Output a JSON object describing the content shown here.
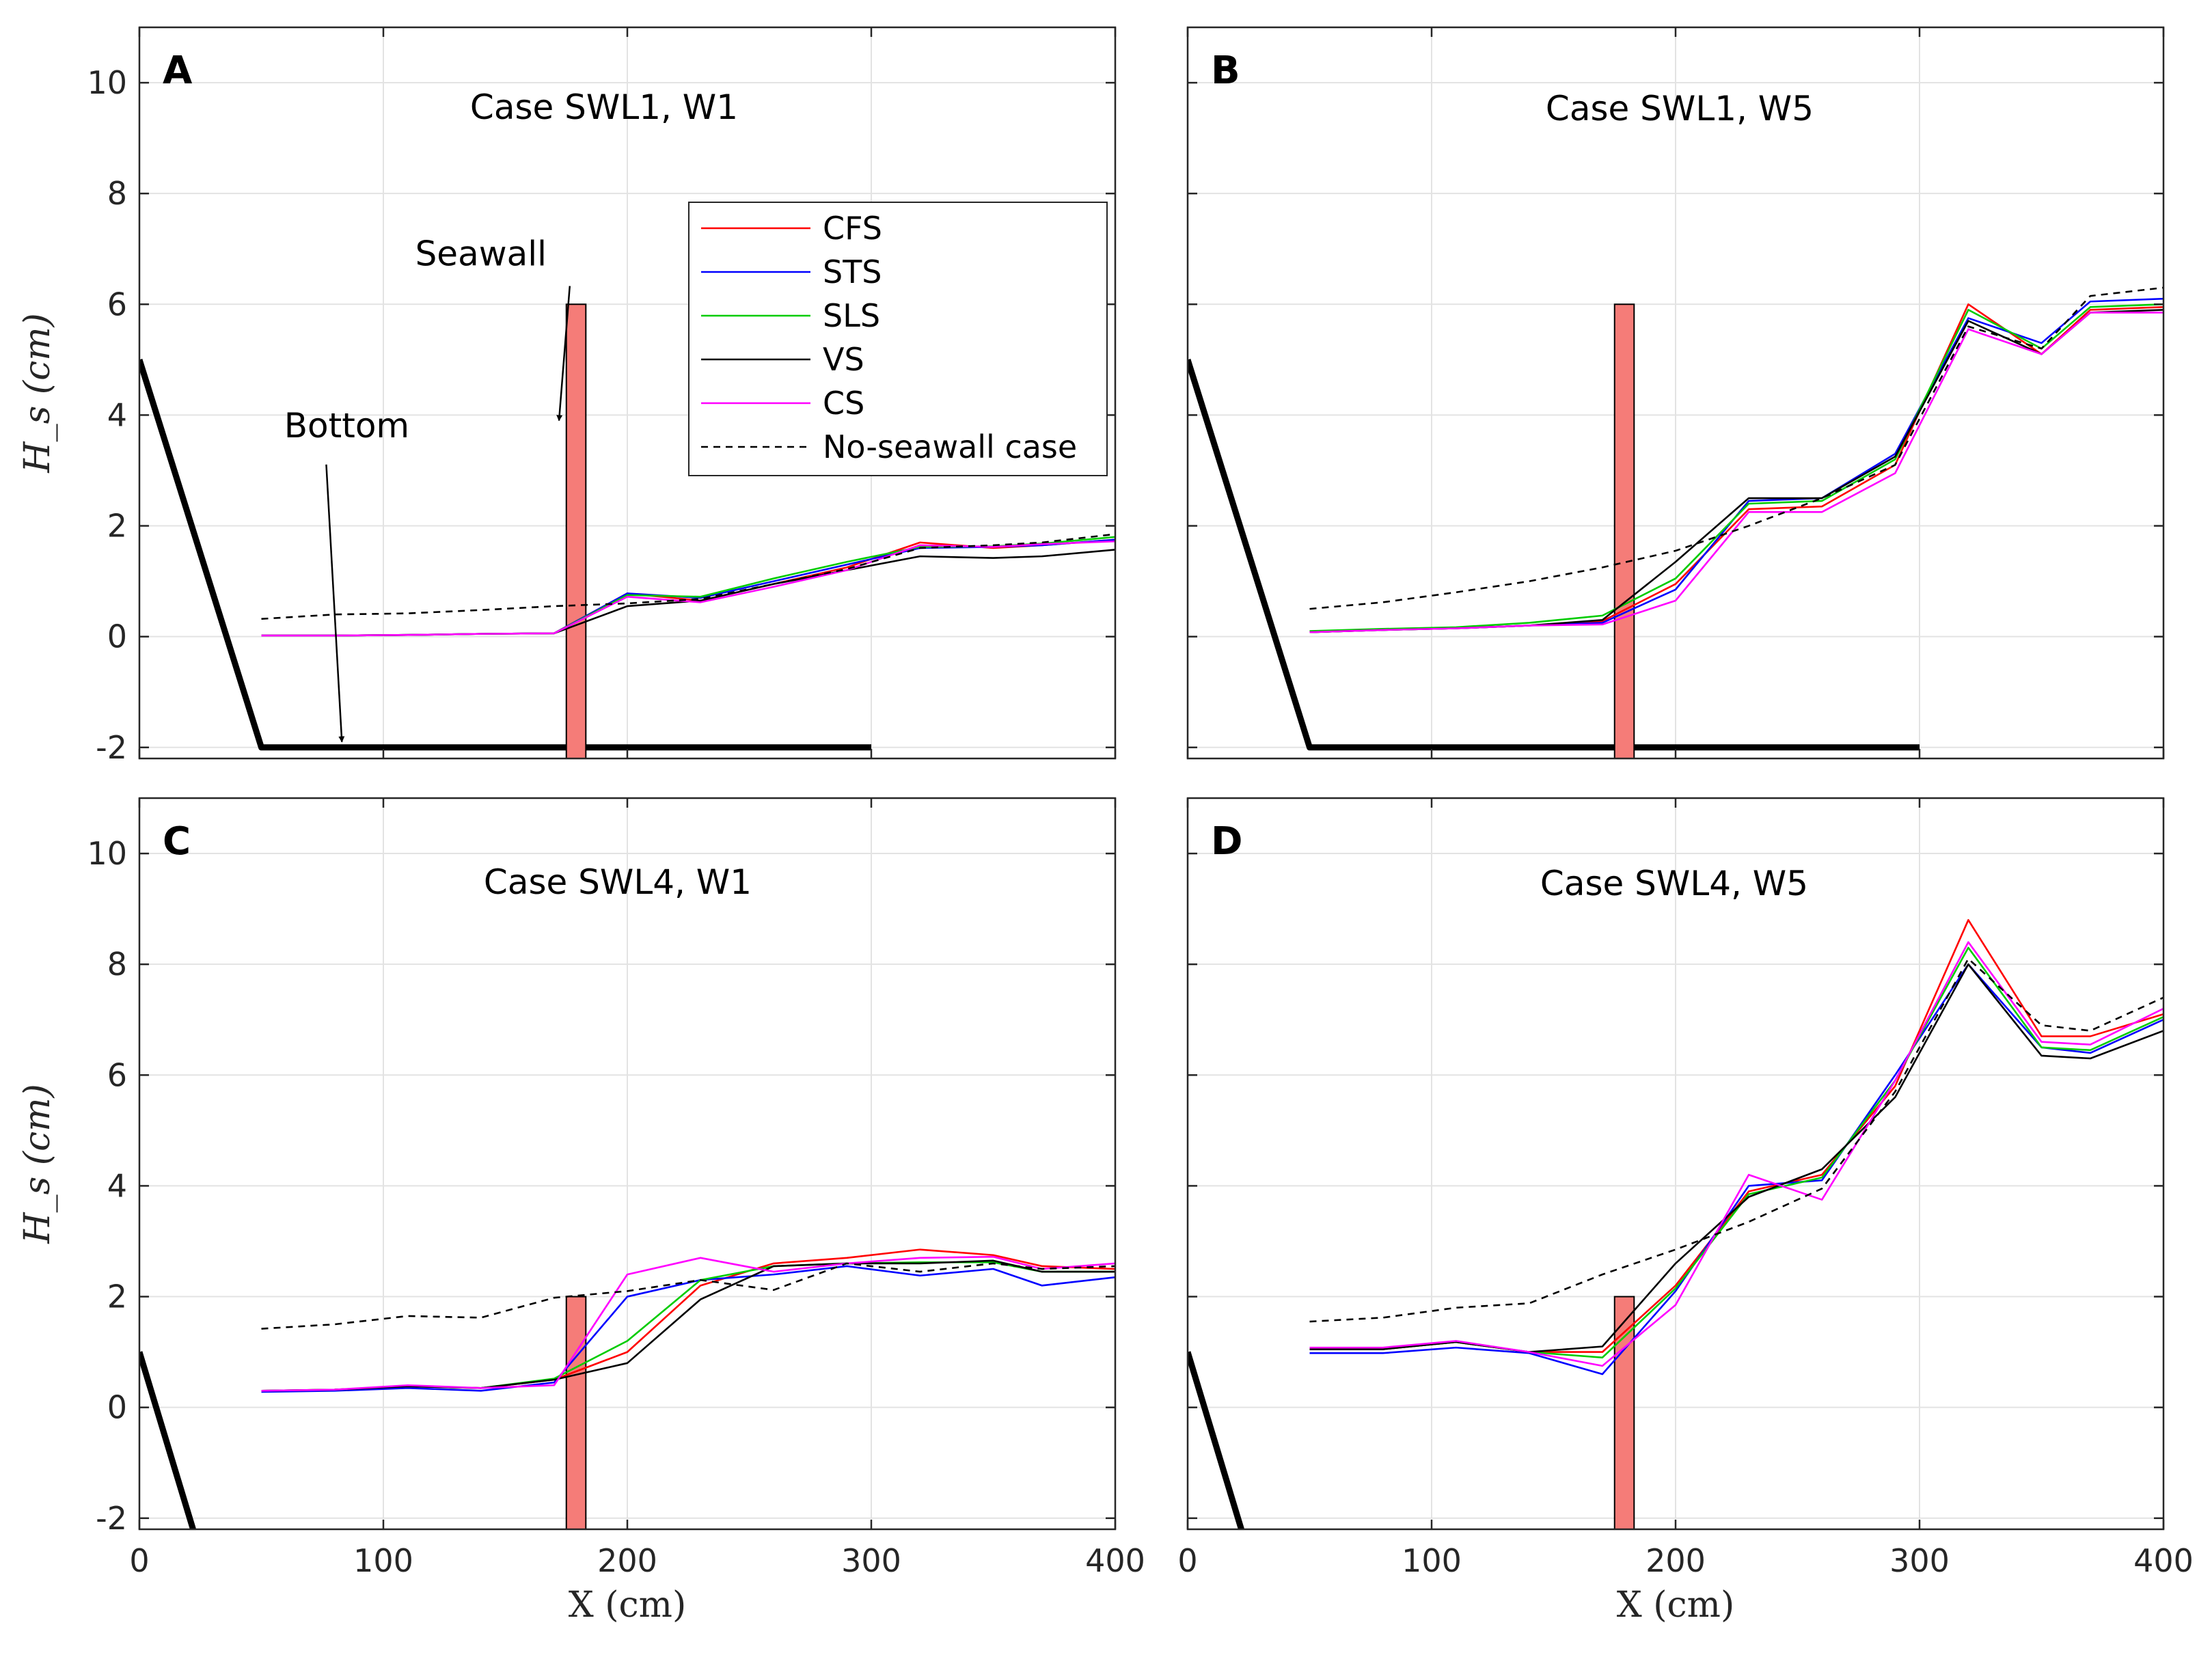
{
  "figure": {
    "xlabel": "X (cm)",
    "ylabel": "H_s (cm)"
  },
  "legend": {
    "entries": [
      {
        "name": "CFS",
        "color": "#ff0000",
        "dash": ""
      },
      {
        "name": "STS",
        "color": "#0000ff",
        "dash": ""
      },
      {
        "name": "SLS",
        "color": "#00cc00",
        "dash": ""
      },
      {
        "name": "VS",
        "color": "#000000",
        "dash": ""
      },
      {
        "name": "CS",
        "color": "#ff00ff",
        "dash": ""
      },
      {
        "name": "No-seawall case",
        "color": "#000000",
        "dash": "dashed"
      }
    ]
  },
  "colors": {
    "seawall_fill": "#f57c78",
    "grid": "#e3e3e3"
  },
  "chart_data": [
    {
      "type": "line",
      "panel": "A",
      "title": "Case SWL1, W1",
      "xlabel": "",
      "ylabel": "H_s (cm)",
      "xlim": [
        0,
        400
      ],
      "ylim": [
        -2.2,
        11
      ],
      "xticks": [
        "0",
        "100",
        "200",
        "300",
        "400"
      ],
      "yticks": [
        "-2",
        "0",
        "2",
        "4",
        "6",
        "8",
        "10"
      ],
      "annotations": [
        {
          "text": "Seawall",
          "anchor_data": [
            140,
            6.7
          ],
          "target_data": [
            172,
            3.9
          ]
        },
        {
          "text": "Bottom",
          "anchor_data": [
            85,
            3.6
          ],
          "target_data": [
            83,
            -1.9
          ]
        }
      ],
      "seawall": {
        "x0": 175,
        "x1": 183,
        "top": 6
      },
      "bottom": [
        [
          0,
          5
        ],
        [
          50,
          -2
        ],
        [
          300,
          -2
        ]
      ],
      "series": [
        {
          "name": "CFS",
          "x": [
            50,
            80,
            110,
            140,
            170,
            200,
            230,
            260,
            290,
            320,
            350,
            370,
            400
          ],
          "y": [
            0.02,
            0.02,
            0.03,
            0.05,
            0.06,
            0.78,
            0.65,
            0.95,
            1.25,
            1.7,
            1.6,
            1.65,
            1.75
          ]
        },
        {
          "name": "STS",
          "x": [
            50,
            80,
            110,
            140,
            170,
            200,
            230,
            260,
            290,
            320,
            350,
            370,
            400
          ],
          "y": [
            0.02,
            0.02,
            0.03,
            0.05,
            0.06,
            0.78,
            0.7,
            1.0,
            1.3,
            1.6,
            1.62,
            1.65,
            1.75
          ]
        },
        {
          "name": "SLS",
          "x": [
            50,
            80,
            110,
            140,
            170,
            200,
            230,
            260,
            290,
            320,
            350,
            370,
            400
          ],
          "y": [
            0.02,
            0.02,
            0.03,
            0.05,
            0.06,
            0.75,
            0.72,
            1.05,
            1.35,
            1.62,
            1.63,
            1.68,
            1.8
          ]
        },
        {
          "name": "VS",
          "x": [
            50,
            80,
            110,
            140,
            170,
            200,
            230,
            260,
            290,
            320,
            350,
            370,
            400
          ],
          "y": [
            0.02,
            0.02,
            0.03,
            0.05,
            0.06,
            0.55,
            0.65,
            0.95,
            1.2,
            1.45,
            1.42,
            1.45,
            1.57
          ]
        },
        {
          "name": "CS",
          "x": [
            50,
            80,
            110,
            140,
            170,
            200,
            230,
            260,
            290,
            320,
            350,
            370,
            400
          ],
          "y": [
            0.02,
            0.02,
            0.03,
            0.05,
            0.06,
            0.72,
            0.62,
            0.9,
            1.2,
            1.65,
            1.62,
            1.67,
            1.72
          ]
        },
        {
          "name": "No-seawall case",
          "x": [
            50,
            80,
            110,
            140,
            170,
            200,
            230,
            260,
            290,
            320,
            350,
            370,
            400
          ],
          "y": [
            0.32,
            0.4,
            0.42,
            0.48,
            0.55,
            0.6,
            0.68,
            0.95,
            1.22,
            1.6,
            1.65,
            1.7,
            1.85
          ]
        }
      ]
    },
    {
      "type": "line",
      "panel": "B",
      "title": "Case SWL1, W5",
      "xlabel": "",
      "ylabel": "",
      "xlim": [
        0,
        400
      ],
      "ylim": [
        -2.2,
        11
      ],
      "xticks": [
        "0",
        "100",
        "200",
        "300",
        "400"
      ],
      "yticks": [
        "-2",
        "0",
        "2",
        "4",
        "6",
        "8",
        "10"
      ],
      "seawall": {
        "x0": 175,
        "x1": 183,
        "top": 6
      },
      "bottom": [
        [
          0,
          5
        ],
        [
          50,
          -2
        ],
        [
          300,
          -2
        ]
      ],
      "series": [
        {
          "name": "CFS",
          "x": [
            50,
            80,
            110,
            140,
            170,
            200,
            230,
            260,
            290,
            320,
            350,
            370,
            400
          ],
          "y": [
            0.08,
            0.12,
            0.15,
            0.2,
            0.28,
            0.95,
            2.3,
            2.35,
            3.1,
            6.0,
            5.1,
            5.9,
            5.95
          ]
        },
        {
          "name": "STS",
          "x": [
            50,
            80,
            110,
            140,
            170,
            200,
            230,
            260,
            290,
            320,
            350,
            370,
            400
          ],
          "y": [
            0.08,
            0.12,
            0.15,
            0.2,
            0.25,
            0.85,
            2.45,
            2.5,
            3.3,
            5.75,
            5.3,
            6.05,
            6.1
          ]
        },
        {
          "name": "SLS",
          "x": [
            50,
            80,
            110,
            140,
            170,
            200,
            230,
            260,
            290,
            320,
            350,
            370,
            400
          ],
          "y": [
            0.1,
            0.14,
            0.17,
            0.25,
            0.38,
            1.05,
            2.4,
            2.45,
            3.2,
            5.9,
            5.2,
            5.95,
            6.0
          ]
        },
        {
          "name": "VS",
          "x": [
            50,
            80,
            110,
            140,
            170,
            200,
            230,
            260,
            290,
            320,
            350,
            370,
            400
          ],
          "y": [
            0.08,
            0.12,
            0.15,
            0.2,
            0.3,
            1.35,
            2.5,
            2.5,
            3.25,
            5.7,
            5.1,
            5.85,
            5.9
          ]
        },
        {
          "name": "CS",
          "x": [
            50,
            80,
            110,
            140,
            170,
            200,
            230,
            260,
            290,
            320,
            350,
            370,
            400
          ],
          "y": [
            0.08,
            0.12,
            0.15,
            0.2,
            0.22,
            0.65,
            2.25,
            2.25,
            2.95,
            5.55,
            5.1,
            5.85,
            5.85
          ]
        },
        {
          "name": "No-seawall case",
          "x": [
            50,
            80,
            110,
            140,
            170,
            200,
            230,
            260,
            290,
            320,
            350,
            370,
            400
          ],
          "y": [
            0.5,
            0.62,
            0.8,
            1.0,
            1.25,
            1.55,
            2.0,
            2.5,
            3.1,
            5.6,
            5.2,
            6.15,
            6.3
          ]
        }
      ]
    },
    {
      "type": "line",
      "panel": "C",
      "title": "Case SWL4, W1",
      "xlabel": "X (cm)",
      "ylabel": "H_s (cm)",
      "xlim": [
        0,
        400
      ],
      "ylim": [
        -2.2,
        11
      ],
      "xticks": [
        "0",
        "100",
        "200",
        "300",
        "400"
      ],
      "yticks": [
        "-2",
        "0",
        "2",
        "4",
        "6",
        "8",
        "10"
      ],
      "seawall": {
        "x0": 175,
        "x1": 183,
        "top": 2
      },
      "bottom": [
        [
          0,
          1
        ],
        [
          22,
          -2.2
        ]
      ],
      "series": [
        {
          "name": "CFS",
          "x": [
            50,
            80,
            110,
            140,
            170,
            200,
            230,
            260,
            290,
            320,
            350,
            370,
            400
          ],
          "y": [
            0.3,
            0.32,
            0.38,
            0.35,
            0.5,
            1.0,
            2.2,
            2.6,
            2.7,
            2.85,
            2.75,
            2.55,
            2.5
          ]
        },
        {
          "name": "STS",
          "x": [
            50,
            80,
            110,
            140,
            170,
            200,
            230,
            260,
            290,
            320,
            350,
            370,
            400
          ],
          "y": [
            0.28,
            0.3,
            0.35,
            0.3,
            0.45,
            2.0,
            2.3,
            2.4,
            2.55,
            2.38,
            2.5,
            2.2,
            2.35
          ]
        },
        {
          "name": "SLS",
          "x": [
            50,
            80,
            110,
            140,
            170,
            200,
            230,
            260,
            290,
            320,
            350,
            370,
            400
          ],
          "y": [
            0.3,
            0.32,
            0.38,
            0.35,
            0.52,
            1.2,
            2.3,
            2.55,
            2.6,
            2.62,
            2.62,
            2.45,
            2.45
          ]
        },
        {
          "name": "VS",
          "x": [
            50,
            80,
            110,
            140,
            170,
            200,
            230,
            260,
            290,
            320,
            350,
            370,
            400
          ],
          "y": [
            0.3,
            0.32,
            0.38,
            0.35,
            0.5,
            0.8,
            1.95,
            2.55,
            2.6,
            2.6,
            2.65,
            2.45,
            2.45
          ]
        },
        {
          "name": "CS",
          "x": [
            50,
            80,
            110,
            140,
            170,
            200,
            230,
            260,
            290,
            320,
            350,
            370,
            400
          ],
          "y": [
            0.3,
            0.32,
            0.4,
            0.35,
            0.4,
            2.4,
            2.7,
            2.45,
            2.6,
            2.7,
            2.72,
            2.5,
            2.6
          ]
        },
        {
          "name": "No-seawall case",
          "x": [
            50,
            80,
            110,
            140,
            170,
            200,
            230,
            260,
            290,
            320,
            350,
            370,
            400
          ],
          "y": [
            1.42,
            1.5,
            1.65,
            1.62,
            1.98,
            2.1,
            2.3,
            2.12,
            2.6,
            2.45,
            2.6,
            2.5,
            2.55
          ]
        }
      ]
    },
    {
      "type": "line",
      "panel": "D",
      "title": "Case SWL4, W5",
      "xlabel": "X (cm)",
      "ylabel": "",
      "xlim": [
        0,
        400
      ],
      "ylim": [
        -2.2,
        11
      ],
      "xticks": [
        "0",
        "100",
        "200",
        "300",
        "400"
      ],
      "yticks": [
        "-2",
        "0",
        "2",
        "4",
        "6",
        "8",
        "10"
      ],
      "seawall": {
        "x0": 175,
        "x1": 183,
        "top": 2
      },
      "bottom": [
        [
          0,
          1
        ],
        [
          22,
          -2.2
        ]
      ],
      "series": [
        {
          "name": "CFS",
          "x": [
            50,
            80,
            110,
            140,
            170,
            200,
            230,
            260,
            290,
            320,
            350,
            370,
            400
          ],
          "y": [
            1.05,
            1.05,
            1.18,
            1.0,
            1.0,
            2.2,
            3.9,
            4.2,
            5.8,
            8.8,
            6.7,
            6.7,
            7.1
          ]
        },
        {
          "name": "STS",
          "x": [
            50,
            80,
            110,
            140,
            170,
            200,
            230,
            260,
            290,
            320,
            350,
            370,
            400
          ],
          "y": [
            0.98,
            0.98,
            1.08,
            0.98,
            0.6,
            2.1,
            4.0,
            4.1,
            6.0,
            8.0,
            6.5,
            6.4,
            7.0
          ]
        },
        {
          "name": "SLS",
          "x": [
            50,
            80,
            110,
            140,
            170,
            200,
            230,
            260,
            290,
            320,
            350,
            370,
            400
          ],
          "y": [
            1.05,
            1.05,
            1.18,
            1.0,
            0.9,
            2.15,
            3.85,
            4.15,
            5.9,
            8.3,
            6.5,
            6.45,
            7.05
          ]
        },
        {
          "name": "VS",
          "x": [
            50,
            80,
            110,
            140,
            170,
            200,
            230,
            260,
            290,
            320,
            350,
            370,
            400
          ],
          "y": [
            1.05,
            1.05,
            1.18,
            1.0,
            1.1,
            2.6,
            3.8,
            4.3,
            5.6,
            8.0,
            6.35,
            6.3,
            6.8
          ]
        },
        {
          "name": "CS",
          "x": [
            50,
            80,
            110,
            140,
            170,
            200,
            230,
            260,
            290,
            320,
            350,
            370,
            400
          ],
          "y": [
            1.08,
            1.08,
            1.2,
            1.0,
            0.75,
            1.85,
            4.2,
            3.75,
            5.9,
            8.4,
            6.6,
            6.55,
            7.2
          ]
        },
        {
          "name": "No-seawall case",
          "x": [
            50,
            80,
            110,
            140,
            170,
            200,
            230,
            260,
            290,
            320,
            350,
            370,
            400
          ],
          "y": [
            1.55,
            1.62,
            1.8,
            1.88,
            2.4,
            2.85,
            3.35,
            3.95,
            5.7,
            8.1,
            6.9,
            6.8,
            7.4
          ]
        }
      ]
    }
  ]
}
